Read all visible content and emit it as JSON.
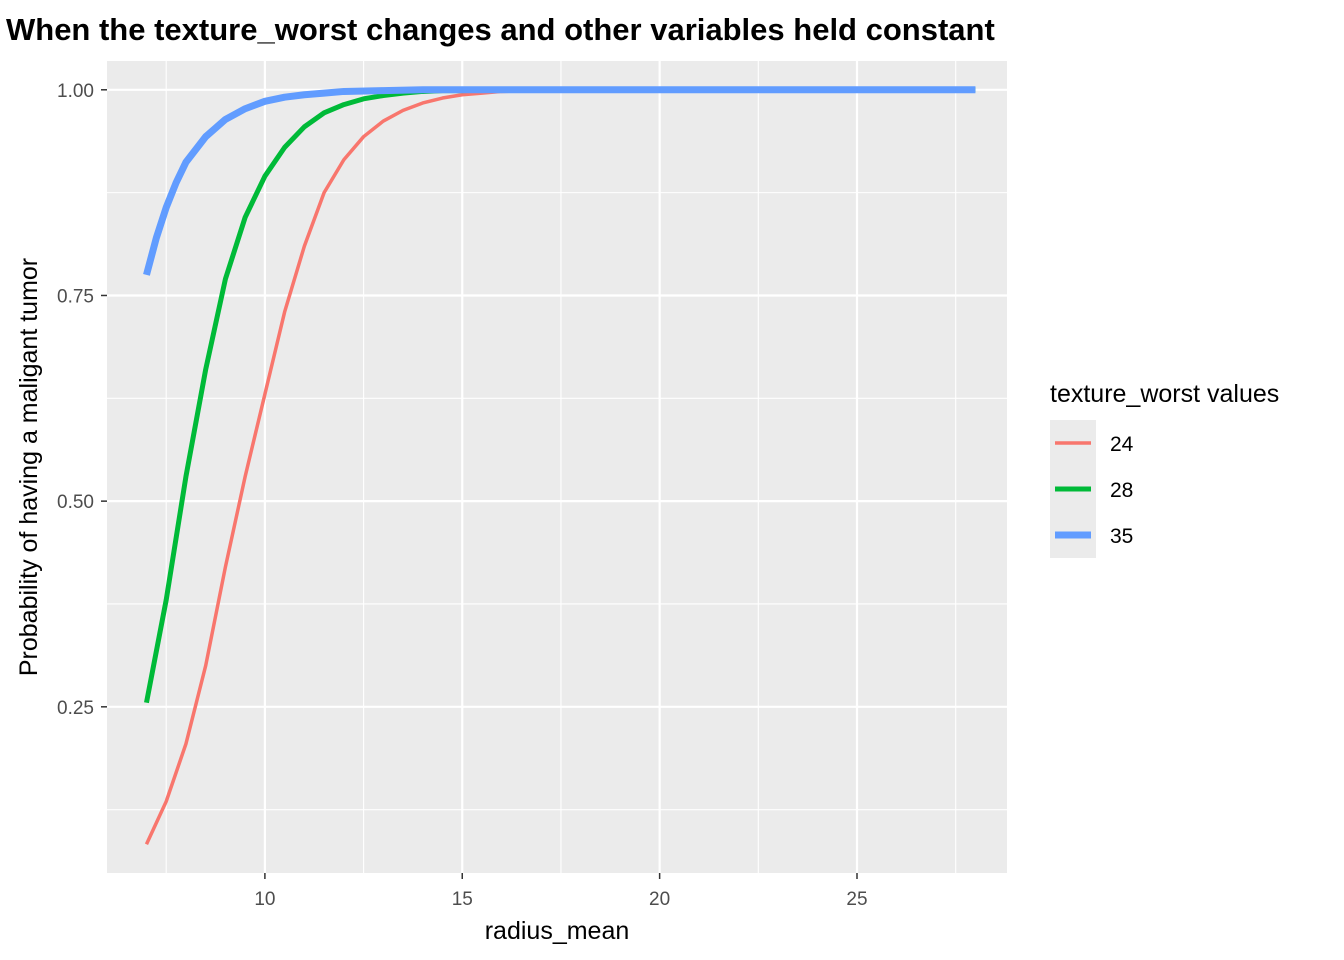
{
  "chart_data": {
    "type": "line",
    "title": "When the texture_worst changes and other variables held constant",
    "xlabel": "radius_mean",
    "ylabel": "Probability of having a maligant tumor",
    "xlim": [
      6.0,
      28.8
    ],
    "ylim": [
      0.048,
      1.035
    ],
    "x_ticks": [
      10,
      15,
      20,
      25
    ],
    "x_tick_labels": [
      "10",
      "15",
      "20",
      "25"
    ],
    "y_ticks": [
      0.25,
      0.5,
      0.75,
      1.0
    ],
    "y_tick_labels": [
      "0.25",
      "0.50",
      "0.75",
      "1.00"
    ],
    "grid": true,
    "legend": {
      "title": "texture_worst values",
      "placement": "right"
    },
    "series": [
      {
        "name": "24",
        "color": "#f8766d",
        "x": [
          7.0,
          7.5,
          8.0,
          8.5,
          9.0,
          9.5,
          10.0,
          10.5,
          11.0,
          11.5,
          12.0,
          12.5,
          13.0,
          13.5,
          14.0,
          14.5,
          15.0,
          15.5,
          16.0,
          17.0,
          18.0,
          20.0,
          22.0,
          24.0,
          26.0,
          28.0
        ],
        "y": [
          0.083,
          0.135,
          0.205,
          0.3,
          0.42,
          0.53,
          0.63,
          0.73,
          0.81,
          0.875,
          0.915,
          0.943,
          0.962,
          0.975,
          0.984,
          0.99,
          0.994,
          0.996,
          0.998,
          0.999,
          1.0,
          1.0,
          1.0,
          1.0,
          1.0,
          1.0
        ]
      },
      {
        "name": "28",
        "color": "#00ba38",
        "x": [
          7.0,
          7.5,
          8.0,
          8.5,
          9.0,
          9.5,
          10.0,
          10.5,
          11.0,
          11.5,
          12.0,
          12.5,
          13.0,
          13.5,
          14.0,
          14.5,
          15.0,
          16.0,
          17.0,
          18.0,
          20.0,
          22.0,
          24.0,
          26.0,
          28.0
        ],
        "y": [
          0.255,
          0.38,
          0.53,
          0.66,
          0.77,
          0.845,
          0.895,
          0.93,
          0.955,
          0.972,
          0.982,
          0.989,
          0.993,
          0.996,
          0.998,
          0.999,
          0.999,
          1.0,
          1.0,
          1.0,
          1.0,
          1.0,
          1.0,
          1.0,
          1.0
        ]
      },
      {
        "name": "35",
        "color": "#619cff",
        "x": [
          7.0,
          7.25,
          7.5,
          7.75,
          8.0,
          8.5,
          9.0,
          9.5,
          10.0,
          10.5,
          11.0,
          11.5,
          12.0,
          13.0,
          14.0,
          15.0,
          16.0,
          18.0,
          20.0,
          22.0,
          24.0,
          26.0,
          28.0
        ],
        "y": [
          0.775,
          0.82,
          0.857,
          0.887,
          0.912,
          0.943,
          0.964,
          0.977,
          0.986,
          0.991,
          0.994,
          0.996,
          0.998,
          0.999,
          1.0,
          1.0,
          1.0,
          1.0,
          1.0,
          1.0,
          1.0,
          1.0,
          1.0
        ]
      }
    ]
  }
}
